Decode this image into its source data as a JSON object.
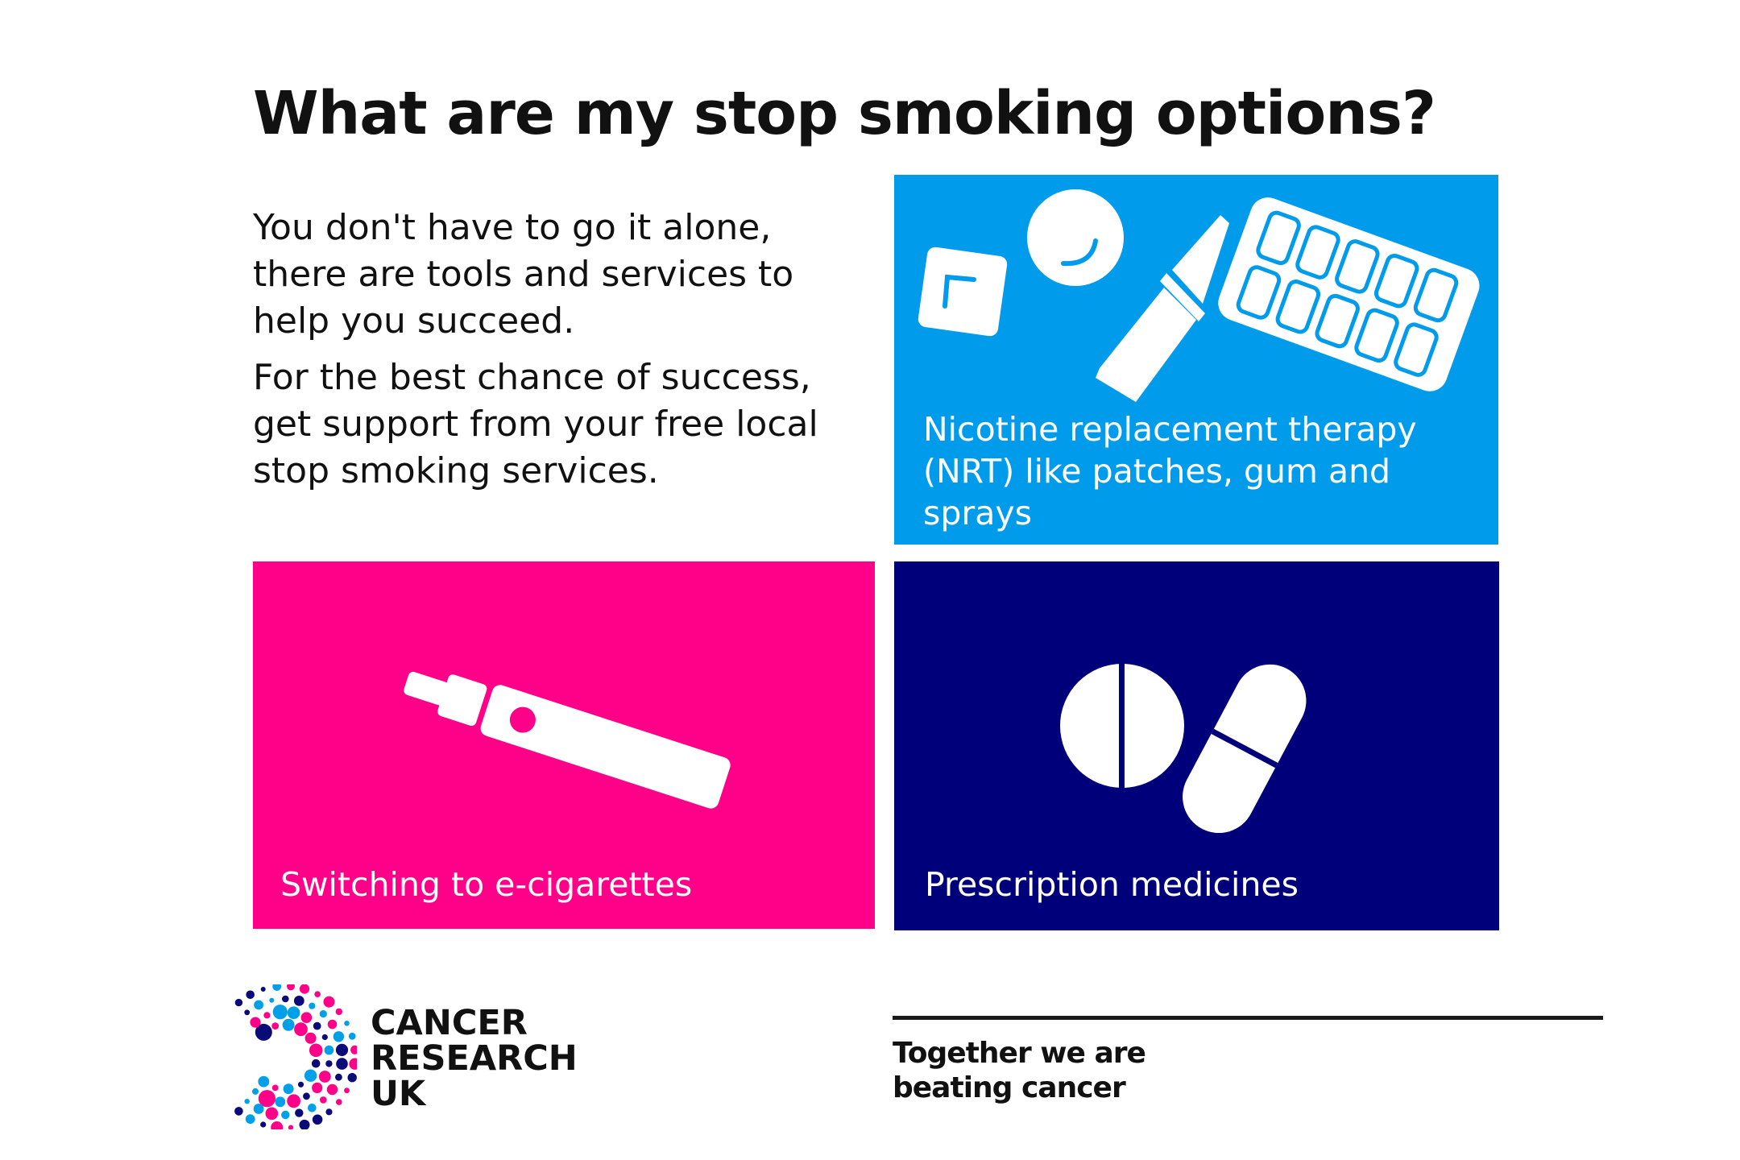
{
  "title": "What are my stop smoking options?",
  "intro": {
    "paragraph1": "You don't have to go it alone, there are tools and services to help you succeed.",
    "paragraph2": "For the best chance of success, get support from your free local stop smoking services."
  },
  "cards": [
    {
      "label": "Nicotine replacement therapy (NRT) like patches, gum and sprays",
      "color": "#009CEB",
      "icons": [
        "patch-icon",
        "lozenge-icon",
        "nasal-spray-icon",
        "gum-blister-pack-icon"
      ]
    },
    {
      "label": "Switching to e-cigarettes",
      "color": "#FF0088",
      "icons": [
        "e-cigarette-icon"
      ]
    },
    {
      "label": "Prescription medicines",
      "color": "#00007A",
      "icons": [
        "tablet-icon",
        "capsule-icon"
      ]
    }
  ],
  "footer": {
    "logo_text": [
      "CANCER",
      "RESEARCH",
      "UK"
    ],
    "logo_colors": [
      "#FF0088",
      "#00A0E9",
      "#0A0A78"
    ],
    "tagline_line1": "Together we are",
    "tagline_line2": "beating cancer"
  }
}
